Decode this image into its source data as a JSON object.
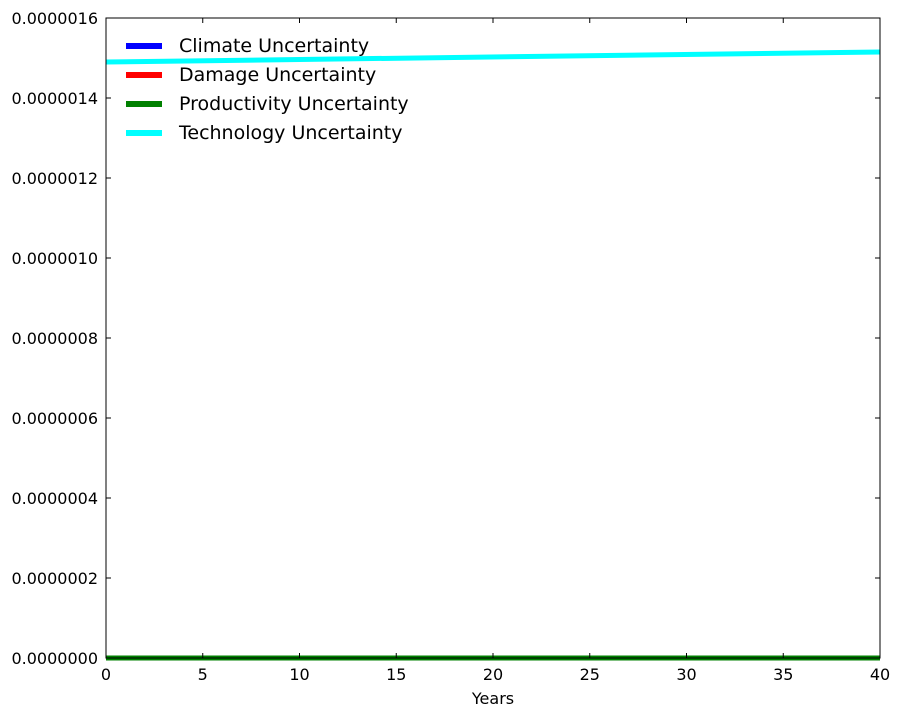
{
  "chart_data": {
    "type": "line",
    "xlabel": "Years",
    "ylabel": "",
    "xlim": [
      0,
      40
    ],
    "ylim": [
      0,
      1.6e-06
    ],
    "xticks": [
      "0",
      "5",
      "10",
      "15",
      "20",
      "25",
      "30",
      "35",
      "40"
    ],
    "yticks": [
      "0.0000000",
      "0.0000002",
      "0.0000004",
      "0.0000006",
      "0.0000008",
      "0.0000010",
      "0.0000012",
      "0.0000014",
      "0.0000016"
    ],
    "x": [
      0,
      40
    ],
    "legend_position": "top-left",
    "grid": false,
    "series": [
      {
        "name": "Climate Uncertainty",
        "color": "#0000ff",
        "values": [
          0,
          0
        ]
      },
      {
        "name": "Damage Uncertainty",
        "color": "#ff0000",
        "values": [
          0,
          0
        ]
      },
      {
        "name": "Productivity Uncertainty",
        "color": "#008000",
        "values": [
          0,
          0
        ]
      },
      {
        "name": "Technology Uncertainty",
        "color": "#00ffff",
        "values": [
          1.49e-06,
          1.515e-06
        ]
      }
    ]
  }
}
